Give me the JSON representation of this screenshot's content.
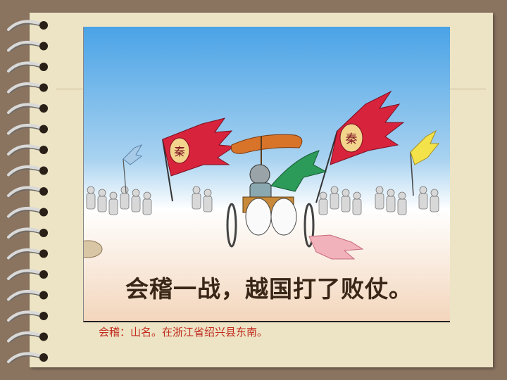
{
  "slide": {
    "caption": "会稽一战，越国打了败仗。",
    "footnote": "会稽：山名。在浙江省绍兴县东南。"
  },
  "illustration": {
    "banner_glyph": "秦",
    "colors": {
      "sky_top": "#4aa3e6",
      "sky_bottom": "#f6e8d6",
      "banner_red": "#d8233c",
      "banner_yellow": "#f3e24a",
      "canopy_orange": "#d8732a",
      "cloak_green": "#2c9a58"
    }
  },
  "notebook": {
    "ring_icon": "spiral-binding-ring-icon",
    "paper_color": "#ece4c4",
    "frame_color": "#8a7460"
  }
}
